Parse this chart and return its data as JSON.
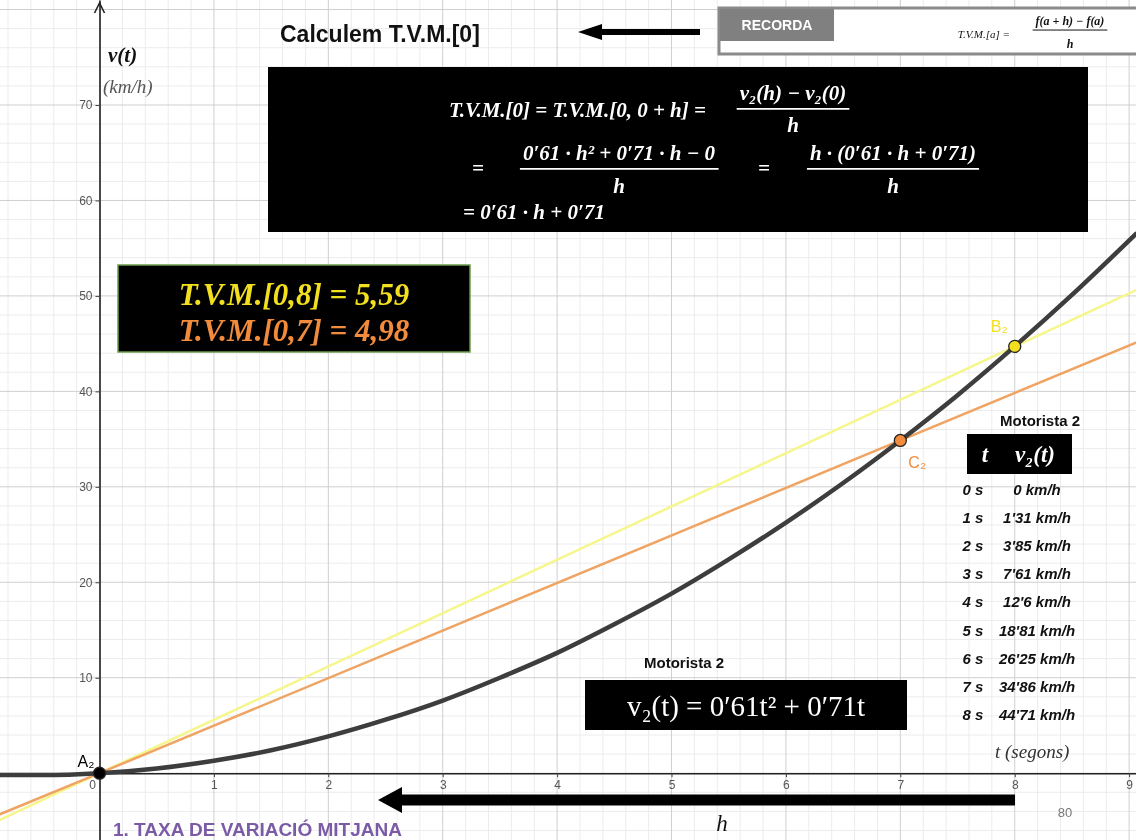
{
  "chart_data": {
    "type": "line",
    "title": "1. TAXA DE VARIACIÓ MITJANA",
    "xlabel": "t (segons)",
    "ylabel": "v(t)\n(km/h)",
    "xlim": [
      -0.87,
      9.06
    ],
    "ylim": [
      -7,
      81
    ],
    "xticks": [
      0,
      1,
      2,
      3,
      4,
      5,
      6,
      7,
      8,
      9
    ],
    "yticks": [
      10,
      20,
      30,
      40,
      50,
      60,
      70
    ],
    "grid": true,
    "series": [
      {
        "color": "#f6f68c",
        "x": [
          -0.87,
          0,
          8,
          9.06
        ],
        "values": [
          -4.9,
          0,
          44.71,
          50.6
        ]
      },
      {
        "color": "#f0a464",
        "x": [
          -0.87,
          0,
          7,
          9.06
        ],
        "values": [
          -4.3,
          0,
          34.86,
          45.1
        ]
      },
      {
        "color": "#3d3d3d",
        "x": [
          -0.87,
          -0.5,
          0,
          0.5,
          1,
          1.5,
          2,
          2.5,
          3,
          3.5,
          4,
          4.5,
          5,
          5.5,
          6,
          6.5,
          7,
          7.5,
          8,
          8.5,
          9.06
        ],
        "values": [
          -0.2,
          -0.2,
          0,
          0.5,
          1.31,
          2.4,
          3.85,
          5.6,
          7.61,
          10.0,
          12.6,
          15.6,
          18.81,
          22.4,
          26.25,
          30.4,
          34.86,
          39.6,
          44.71,
          50.1,
          56.5
        ]
      },
      {
        "type": "scatter",
        "marker": "circle",
        "x": [
          0,
          8,
          7
        ],
        "values": [
          0,
          44.71,
          34.86
        ],
        "colors": [
          "#000000",
          "#f2df1f",
          "#f28c3c"
        ]
      }
    ],
    "annotations": [
      "Calculem T.V.M.[0]",
      "RECORDA",
      "T.V.M.[a] =",
      "f(a + h) − f(a)",
      "h",
      "T.V.M.[0] = T.V.M.[0, 0 + h] =",
      "v₂(h) − v₂(0)",
      "h",
      "=",
      "0′61 · h² + 0′71 · h − 0",
      "h",
      "=",
      "h · (0′61 · h + 0′71)",
      "h",
      "= 0′61 · h + 0′71",
      "T.V.M.[0,8] = 5,59",
      "T.V.M.[0,7] = 4,98",
      "Motorista 2",
      "t",
      "v₂(t)",
      "0 s",
      "0 km/h",
      "1 s",
      "1'31 km/h",
      "2 s",
      "3'85 km/h",
      "3 s",
      "7'61 km/h",
      "4 s",
      "12'6 km/h",
      "5 s",
      "18'81 km/h",
      "6 s",
      "26'25 km/h",
      "7 s",
      "34'86 km/h",
      "8 s",
      "44'71 km/h",
      "Motorista 2",
      "v₂(t) = 0′61t² + 0′71t",
      "h",
      "80",
      {
        "text": "A₂",
        "x": 0,
        "y": 0
      },
      {
        "text": "B₂",
        "x": 8,
        "y": 44.71
      },
      {
        "text": "C₂",
        "x": 7,
        "y": 34.86
      }
    ]
  }
}
